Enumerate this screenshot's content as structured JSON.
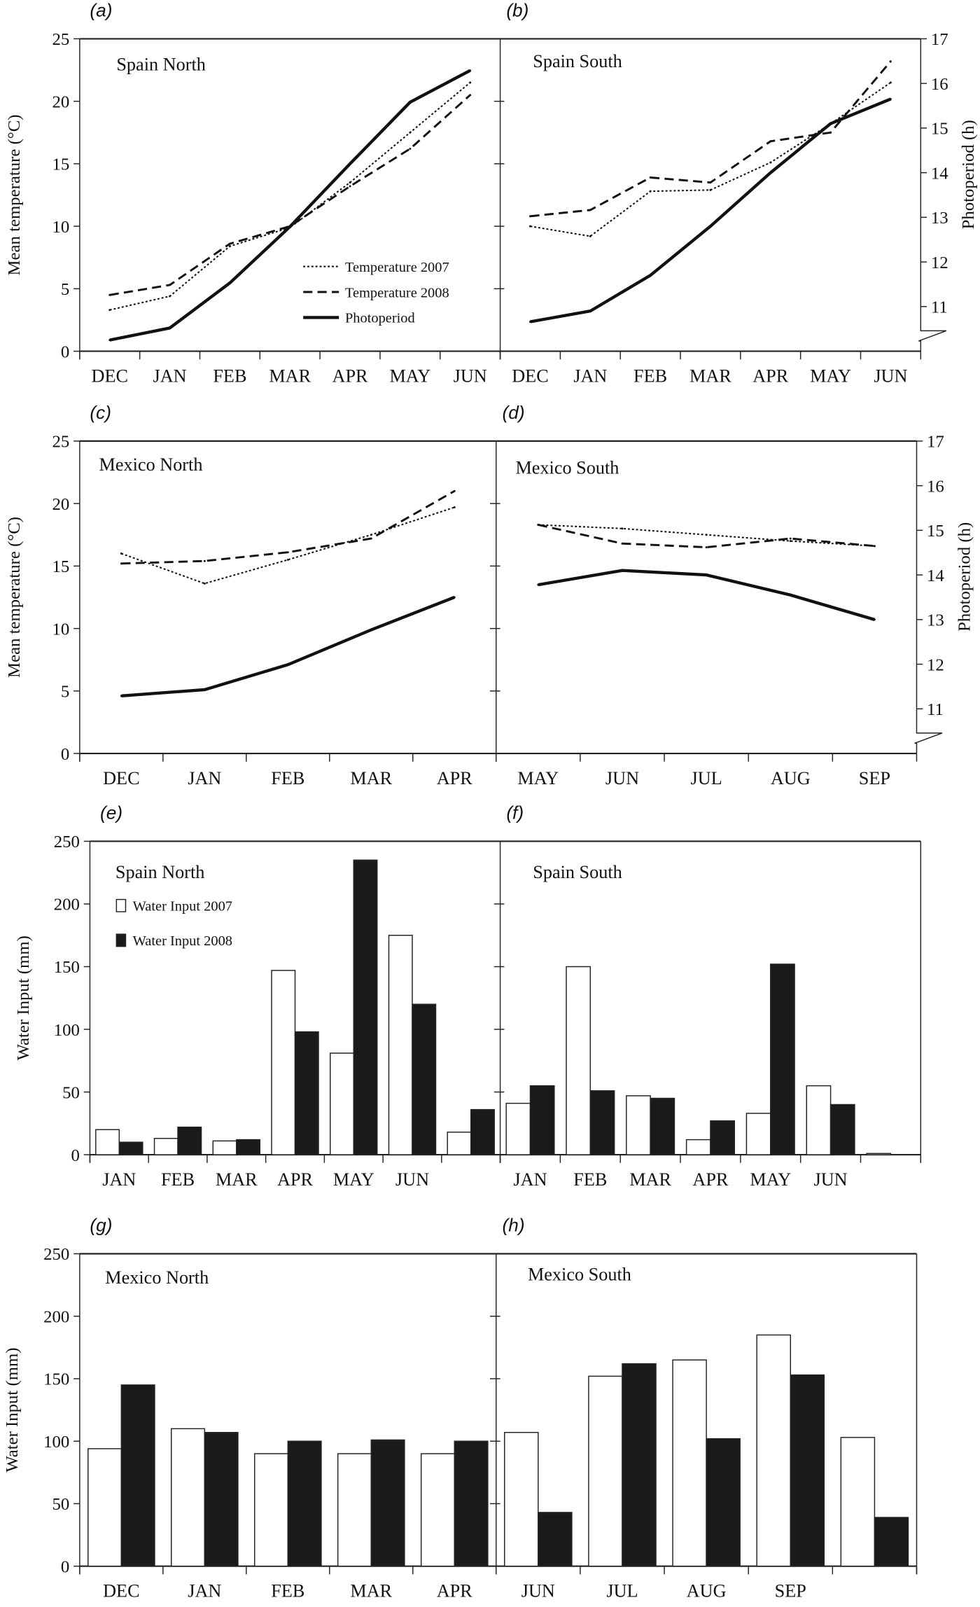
{
  "axis_labels": {
    "temp": "Mean temperature (°C)",
    "photo": "Photoperiod (h)",
    "water": "Water Input (mm)"
  },
  "legend_lines": [
    "Temperature 2007",
    "Temperature 2008",
    "Photoperiod"
  ],
  "legend_bars": [
    "Water Input 2007",
    "Water Input 2008"
  ],
  "chart_data": [
    {
      "id": "a",
      "type": "line",
      "panel_label": "(a)",
      "title": "Spain North",
      "categories": [
        "DEC",
        "JAN",
        "FEB",
        "MAR",
        "APR",
        "MAY",
        "JUN"
      ],
      "ylim": [
        0,
        25
      ],
      "yticks": [
        0,
        5,
        10,
        15,
        20,
        25
      ],
      "y2lim": [
        10,
        17
      ],
      "series": [
        {
          "name": "Temperature 2007",
          "values": [
            3.3,
            4.4,
            8.4,
            9.9,
            13.5,
            17.5,
            21.5
          ]
        },
        {
          "name": "Temperature 2008",
          "values": [
            4.5,
            5.3,
            8.6,
            10,
            13.2,
            16.2,
            20.5
          ]
        },
        {
          "name": "Photoperiod",
          "axis": "right",
          "values": [
            10.25,
            10.52,
            11.53,
            12.79,
            14.2,
            15.58,
            16.29
          ]
        }
      ]
    },
    {
      "id": "b",
      "type": "line",
      "panel_label": "(b)",
      "title": "Spain South",
      "categories": [
        "DEC",
        "JAN",
        "FEB",
        "MAR",
        "APR",
        "MAY",
        "JUN"
      ],
      "ylim": [
        0,
        25
      ],
      "y2lim": [
        10,
        17
      ],
      "y2ticks": [
        11,
        12,
        13,
        14,
        15,
        16,
        17
      ],
      "series": [
        {
          "name": "Temperature 2007",
          "values": [
            10,
            9.2,
            12.8,
            12.9,
            15.1,
            18.2,
            21.5
          ]
        },
        {
          "name": "Temperature 2008",
          "values": [
            10.8,
            11.3,
            13.9,
            13.5,
            16.8,
            17.5,
            23.2
          ]
        },
        {
          "name": "Photoperiod",
          "axis": "right",
          "values": [
            10.66,
            10.9,
            11.7,
            12.8,
            14,
            15.1,
            15.65
          ]
        }
      ]
    },
    {
      "id": "c",
      "type": "line",
      "panel_label": "(c)",
      "title": "Mexico North",
      "categories": [
        "DEC",
        "JAN",
        "FEB",
        "MAR",
        "APR"
      ],
      "ylim": [
        0,
        25
      ],
      "yticks": [
        0,
        5,
        10,
        15,
        20,
        25
      ],
      "y2lim": [
        10,
        17
      ],
      "series": [
        {
          "name": "Temperature 2007",
          "values": [
            16,
            13.6,
            15.5,
            17.5,
            19.7
          ]
        },
        {
          "name": "Temperature 2008",
          "values": [
            15.2,
            15.4,
            16.1,
            17.2,
            21
          ]
        },
        {
          "name": "Photoperiod",
          "axis": "right",
          "values": [
            11.29,
            11.43,
            11.99,
            12.77,
            13.5
          ]
        }
      ]
    },
    {
      "id": "d",
      "type": "line",
      "panel_label": "(d)",
      "title": "Mexico South",
      "categories": [
        "MAY",
        "JUN",
        "JUL",
        "AUG",
        "SEP"
      ],
      "ylim": [
        0,
        25
      ],
      "y2lim": [
        10,
        17
      ],
      "y2ticks": [
        11,
        12,
        13,
        14,
        15,
        16,
        17
      ],
      "series": [
        {
          "name": "Temperature 2007",
          "values": [
            18.3,
            18,
            17.5,
            17,
            16.6
          ]
        },
        {
          "name": "Temperature 2008",
          "values": [
            18.3,
            16.8,
            16.5,
            17.2,
            16.6
          ]
        },
        {
          "name": "Photoperiod",
          "axis": "right",
          "values": [
            13.78,
            14.1,
            14.0,
            13.55,
            13.0
          ]
        }
      ]
    },
    {
      "id": "e",
      "type": "bar",
      "panel_label": "(e)",
      "title": "Spain North",
      "categories": [
        "JAN",
        "FEB",
        "MAR",
        "APR",
        "MAY",
        "JUN",
        ""
      ],
      "ylim": [
        0,
        250
      ],
      "yticks": [
        0,
        50,
        100,
        150,
        200,
        250
      ],
      "series": [
        {
          "name": "Water Input 2007",
          "values": [
            20,
            13,
            11,
            147,
            81,
            175,
            18
          ]
        },
        {
          "name": "Water Input 2008",
          "values": [
            10,
            22,
            12,
            98,
            235,
            120,
            36
          ]
        }
      ]
    },
    {
      "id": "f",
      "type": "bar",
      "panel_label": "(f)",
      "title": "Spain South",
      "categories": [
        "JAN",
        "FEB",
        "MAR",
        "APR",
        "MAY",
        "JUN",
        ""
      ],
      "ylim": [
        0,
        250
      ],
      "series": [
        {
          "name": "Water Input 2007",
          "values": [
            41,
            150,
            47,
            12,
            33,
            55,
            1
          ]
        },
        {
          "name": "Water Input 2008",
          "values": [
            55,
            51,
            45,
            27,
            152,
            40,
            0
          ]
        }
      ]
    },
    {
      "id": "g",
      "type": "bar",
      "panel_label": "(g)",
      "title": "Mexico North",
      "categories": [
        "DEC",
        "JAN",
        "FEB",
        "MAR",
        "APR"
      ],
      "ylim": [
        0,
        250
      ],
      "yticks": [
        0,
        50,
        100,
        150,
        200,
        250
      ],
      "series": [
        {
          "name": "Water Input 2007",
          "values": [
            94,
            110,
            90,
            90,
            90
          ]
        },
        {
          "name": "Water Input 2008",
          "values": [
            145,
            107,
            100,
            101,
            100
          ]
        }
      ]
    },
    {
      "id": "h",
      "type": "bar",
      "panel_label": "(h)",
      "title": "Mexico South",
      "categories": [
        "JUN",
        "JUL",
        "AUG",
        "SEP",
        ""
      ],
      "ylim": [
        0,
        250
      ],
      "series": [
        {
          "name": "Water Input 2007",
          "values": [
            107,
            152,
            165,
            185,
            103
          ]
        },
        {
          "name": "Water Input 2008",
          "values": [
            43,
            162,
            102,
            153,
            39
          ]
        }
      ]
    }
  ]
}
